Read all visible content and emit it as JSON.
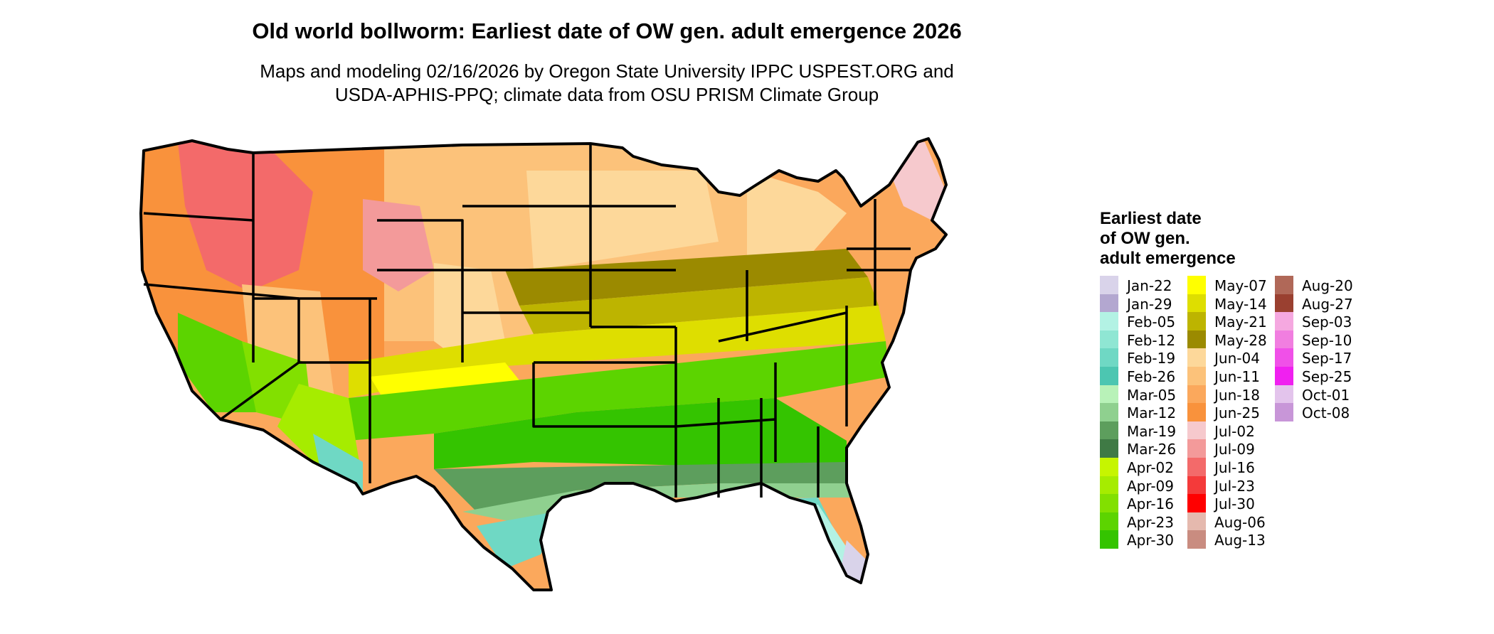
{
  "header": {
    "title": "Old world bollworm: Earliest date of OW gen. adult emergence 2026",
    "subtitle_line1": "Maps and modeling 02/16/2026 by Oregon State University IPPC USPEST.ORG and",
    "subtitle_line2": "USDA-APHIS-PPQ; climate data from OSU PRISM Climate Group"
  },
  "legend": {
    "title_line1": "Earliest date",
    "title_line2": "of OW gen.",
    "title_line3": "adult emergence",
    "columns": [
      [
        {
          "label": "Jan-22",
          "color": "#d9d3ea"
        },
        {
          "label": "Jan-29",
          "color": "#b3a7d0"
        },
        {
          "label": "Feb-05",
          "color": "#b3f2e4"
        },
        {
          "label": "Feb-12",
          "color": "#8fe6d3"
        },
        {
          "label": "Feb-19",
          "color": "#6fd8c4"
        },
        {
          "label": "Feb-26",
          "color": "#4cc6b1"
        },
        {
          "label": "Mar-05",
          "color": "#b8f2b8"
        },
        {
          "label": "Mar-12",
          "color": "#8fd08f"
        },
        {
          "label": "Mar-19",
          "color": "#5d9e5d"
        },
        {
          "label": "Mar-26",
          "color": "#3f7a45"
        },
        {
          "label": "Apr-02",
          "color": "#c6f500"
        },
        {
          "label": "Apr-09",
          "color": "#a6ec00"
        },
        {
          "label": "Apr-16",
          "color": "#82e000"
        },
        {
          "label": "Apr-23",
          "color": "#5cd400"
        },
        {
          "label": "Apr-30",
          "color": "#34c400"
        }
      ],
      [
        {
          "label": "May-07",
          "color": "#ffff00"
        },
        {
          "label": "May-14",
          "color": "#dede00"
        },
        {
          "label": "May-21",
          "color": "#bdb400"
        },
        {
          "label": "May-28",
          "color": "#9b8a00"
        },
        {
          "label": "Jun-04",
          "color": "#fdd89a"
        },
        {
          "label": "Jun-11",
          "color": "#fcc27a"
        },
        {
          "label": "Jun-18",
          "color": "#fba85c"
        },
        {
          "label": "Jun-25",
          "color": "#f9923c"
        },
        {
          "label": "Jul-02",
          "color": "#f6c9cd"
        },
        {
          "label": "Jul-09",
          "color": "#f39a9a"
        },
        {
          "label": "Jul-16",
          "color": "#f36a6a"
        },
        {
          "label": "Jul-23",
          "color": "#f43a3a"
        },
        {
          "label": "Jul-30",
          "color": "#ff0000"
        },
        {
          "label": "Aug-06",
          "color": "#e5b9ae"
        },
        {
          "label": "Aug-13",
          "color": "#c98c80"
        }
      ],
      [
        {
          "label": "Aug-20",
          "color": "#b06858"
        },
        {
          "label": "Aug-27",
          "color": "#9a4030"
        },
        {
          "label": "Sep-03",
          "color": "#f5a8e0"
        },
        {
          "label": "Sep-10",
          "color": "#f17ee0"
        },
        {
          "label": "Sep-17",
          "color": "#f050e8"
        },
        {
          "label": "Sep-25",
          "color": "#f020f0"
        },
        {
          "label": "Oct-01",
          "color": "#e3c4ec"
        },
        {
          "label": "Oct-08",
          "color": "#c896d8"
        }
      ]
    ]
  }
}
